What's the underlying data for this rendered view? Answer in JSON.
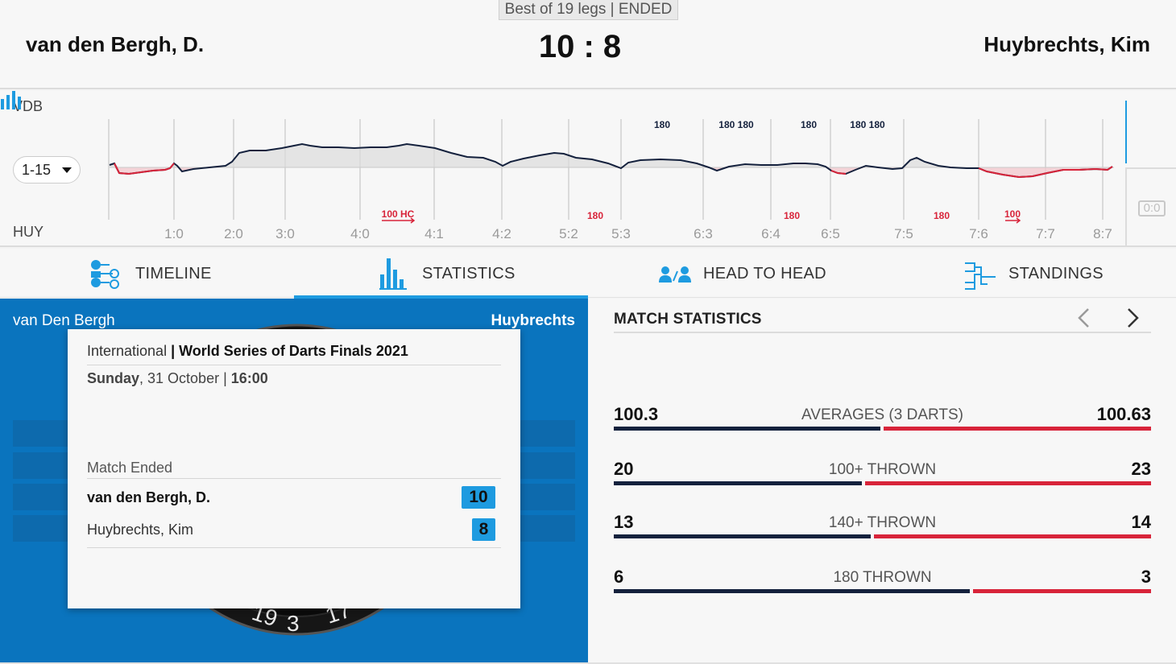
{
  "header": {
    "best_of": "Best of 19 legs | ENDED",
    "player_left": "van den Bergh, D.",
    "player_right": "Huybrechts, Kim",
    "score": "10 : 8"
  },
  "momentum": {
    "top_label": "VDB",
    "bottom_label": "HUY",
    "range": "1-15",
    "side_score": "0:0",
    "legs": [
      "1:0",
      "2:0",
      "3:0",
      "4:0",
      "4:1",
      "4:2",
      "5:2",
      "5:3",
      "6:3",
      "6:4",
      "6:5",
      "7:5",
      "7:6",
      "7:7",
      "8:7"
    ],
    "top_marks": [
      "180",
      "180 180",
      "180",
      "180 180"
    ],
    "bottom_marks": [
      "100 HC",
      "180",
      "180",
      "180",
      "100"
    ],
    "colors": {
      "vdb": "#14213d",
      "huy": "#d8243a",
      "accent": "#1e9be0"
    }
  },
  "tabs": [
    {
      "label": "TIMELINE",
      "icon": "timeline-icon"
    },
    {
      "label": "STATISTICS",
      "icon": "statistics-icon",
      "active": true
    },
    {
      "label": "HEAD TO HEAD",
      "icon": "head-to-head-icon"
    },
    {
      "label": "STANDINGS",
      "icon": "standings-icon"
    }
  ],
  "board": {
    "left_name": "van Den Bergh",
    "right_name": "Huybrechts",
    "numbers": [
      "19",
      "3",
      "17"
    ]
  },
  "card": {
    "category": "International",
    "tournament": "World Series of Darts Finals 2021",
    "day": "Sunday",
    "date": ", 31 October | ",
    "time": "16:00",
    "status": "Match Ended",
    "player1": {
      "name": "van den Bergh, D.",
      "score": "10"
    },
    "player2": {
      "name": "Huybrechts, Kim",
      "score": "8"
    }
  },
  "stats": {
    "title": "MATCH STATISTICS",
    "rows": [
      {
        "label": "AVERAGES (3 DARTS)",
        "left": "100.3",
        "right": "100.63",
        "left_num": 100.3,
        "right_num": 100.63
      },
      {
        "label": "100+ THROWN",
        "left": "20",
        "right": "23",
        "left_num": 20,
        "right_num": 23
      },
      {
        "label": "140+ THROWN",
        "left": "13",
        "right": "14",
        "left_num": 13,
        "right_num": 14
      },
      {
        "label": "180 THROWN",
        "left": "6",
        "right": "3",
        "left_num": 6,
        "right_num": 3
      }
    ]
  }
}
